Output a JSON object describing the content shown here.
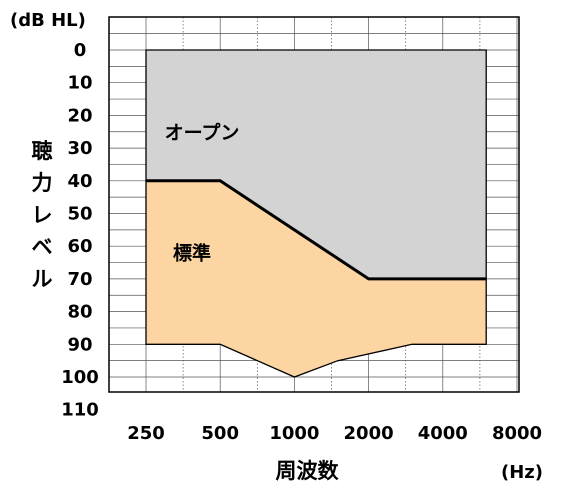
{
  "chart_data": {
    "type": "area",
    "unit_label": "(dB HL)",
    "ylabel": "聴力レベル",
    "xlabel": "周波数",
    "x_unit_label": "(Hz)",
    "x_ticks": [
      "250",
      "500",
      "1000",
      "2000",
      "4000",
      "8000"
    ],
    "y_ticks": [
      "0",
      "10",
      "20",
      "30",
      "40",
      "50",
      "60",
      "70",
      "80",
      "90",
      "100",
      "110"
    ],
    "ylim": [
      0,
      110
    ],
    "y_inverted": true,
    "x_scale": "log",
    "xlim": [
      176.8,
      8000
    ],
    "grid": true,
    "series": [
      {
        "name": "オープン",
        "color": "#d3d3d3",
        "upper": [
          [
            250,
            0
          ],
          [
            6000,
            0
          ]
        ],
        "lower": [
          [
            250,
            40
          ],
          [
            500,
            40
          ],
          [
            2000,
            70
          ],
          [
            6000,
            70
          ]
        ]
      },
      {
        "name": "標準",
        "color": "#fdd5a2",
        "upper": [
          [
            250,
            40
          ],
          [
            500,
            40
          ],
          [
            2000,
            70
          ],
          [
            6000,
            70
          ]
        ],
        "lower": [
          [
            250,
            90
          ],
          [
            500,
            90
          ],
          [
            1000,
            100
          ],
          [
            1500,
            95
          ],
          [
            3000,
            90
          ],
          [
            6000,
            90
          ]
        ]
      }
    ]
  }
}
